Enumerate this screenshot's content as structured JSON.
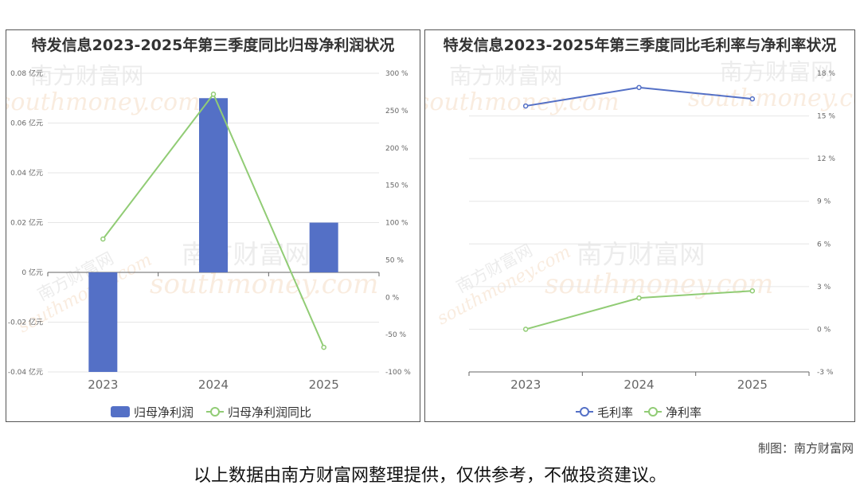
{
  "charts": {
    "left": {
      "title": "特发信息2023-2025年第三季度同比归母净利润状况",
      "categories": [
        "2023",
        "2024",
        "2025"
      ],
      "left_ticks": [
        "0.08 亿元",
        "0.06 亿元",
        "0.04 亿元",
        "0.02 亿元",
        "0 亿元",
        "-0.02 亿元",
        "-0.04 亿元"
      ],
      "right_ticks": [
        "300 %",
        "250 %",
        "200 %",
        "150 %",
        "100 %",
        "50 %",
        "0 %",
        "-50 %",
        "-100 %"
      ],
      "legend": [
        "归母净利润",
        "归母净利润同比"
      ]
    },
    "right": {
      "title": "特发信息2023-2025年第三季度同比毛利率与净利率状况",
      "categories": [
        "2023",
        "2024",
        "2025"
      ],
      "right_ticks": [
        "18 %",
        "15 %",
        "12 %",
        "9 %",
        "6 %",
        "3 %",
        "0 %",
        "-3 %"
      ],
      "legend": [
        "毛利率",
        "净利率"
      ]
    }
  },
  "chart_data": [
    {
      "type": "bar",
      "title": "特发信息2023-2025年第三季度同比归母净利润状况",
      "categories": [
        "2023",
        "2024",
        "2025"
      ],
      "series": [
        {
          "name": "归母净利润",
          "type": "bar",
          "axis": "left",
          "values": [
            -0.04,
            0.07,
            0.02
          ]
        },
        {
          "name": "归母净利润同比",
          "type": "line",
          "axis": "right",
          "values": [
            78,
            272,
            -67
          ]
        }
      ],
      "ylim_left": [
        -0.04,
        0.08
      ],
      "ylim_right": [
        -100,
        300
      ],
      "colors": [
        "#5470c6",
        "#91cc75"
      ],
      "legend_position": "bottom"
    },
    {
      "type": "line",
      "title": "特发信息2023-2025年第三季度同比毛利率与净利率状况",
      "categories": [
        "2023",
        "2024",
        "2025"
      ],
      "series": [
        {
          "name": "毛利率",
          "values": [
            15.7,
            17.0,
            16.2
          ]
        },
        {
          "name": "净利率",
          "values": [
            0.0,
            2.2,
            2.7
          ]
        }
      ],
      "ylim": [
        -3,
        18
      ],
      "colors": [
        "#5470c6",
        "#91cc75"
      ],
      "legend_position": "bottom"
    }
  ],
  "watermark": {
    "cn": "南方财富网",
    "en": "southmoney.com"
  },
  "footer": {
    "credit": "制图：南方财富网",
    "disclaimer": "以上数据由南方财富网整理提供，仅供参考，不做投资建议。"
  }
}
